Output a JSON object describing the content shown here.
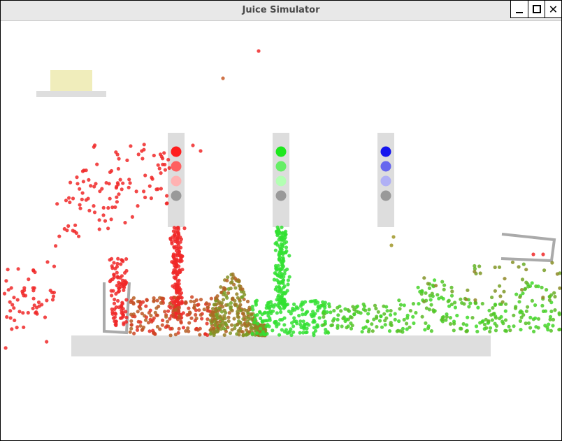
{
  "window": {
    "title": "Juice Simulator",
    "controls": {
      "minimize": "minimize-icon",
      "maximize": "maximize-icon",
      "close": "close-icon"
    }
  },
  "colors": {
    "red": "#ff2020",
    "green": "#22ee22",
    "blue": "#1515ee",
    "gray": "#999999",
    "column": "#dddddd",
    "platform": "#dedede",
    "butter": "#f0edbb",
    "cup": "#aaaaaa"
  },
  "dispensers": [
    {
      "id": "red",
      "dots": [
        "#ff1e1e",
        "#ff6060",
        "#ffb2b2",
        "#999999"
      ]
    },
    {
      "id": "green",
      "dots": [
        "#1ee81e",
        "#66ee66",
        "#b3ffb3",
        "#999999"
      ]
    },
    {
      "id": "blue",
      "dots": [
        "#1515ee",
        "#6666ee",
        "#b0b0f5",
        "#999999"
      ]
    }
  ],
  "particle_counts": {
    "red": 560,
    "mixed": 320,
    "green": 580
  }
}
